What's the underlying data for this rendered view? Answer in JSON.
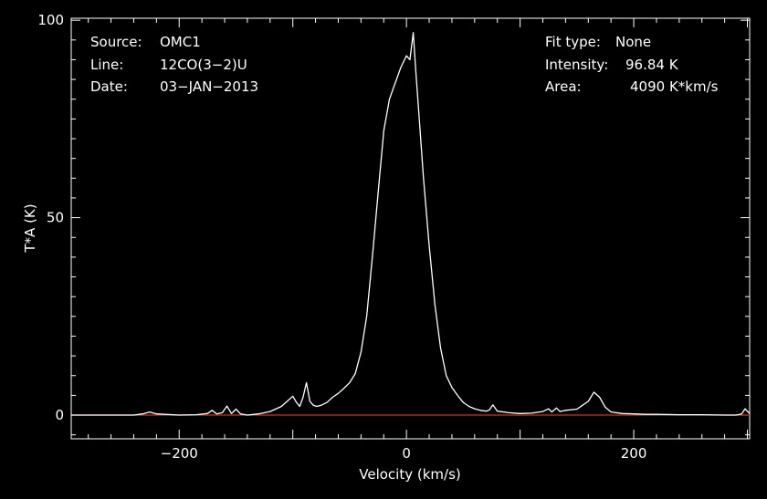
{
  "chart_data": {
    "type": "line",
    "xlabel": "Velocity (km/s)",
    "ylabel": "T*A (K)",
    "xlim": [
      -295,
      302
    ],
    "ylim": [
      -6,
      100.5
    ],
    "x_ticks": [
      -200,
      0,
      200
    ],
    "x_tick_labels": [
      "−200",
      "0",
      "200"
    ],
    "y_ticks": [
      0,
      50,
      100
    ],
    "y_tick_labels": [
      "0",
      "50",
      "100"
    ],
    "background_color": "#000000",
    "axis_color": "#ffffff",
    "grid": false,
    "annotations_left": [
      {
        "key": "Source:",
        "value": "OMC1"
      },
      {
        "key": "Line:",
        "value": "12CO(3−2)U"
      },
      {
        "key": "Date:",
        "value": "03−JAN−2013"
      }
    ],
    "annotations_right": [
      {
        "key": "Fit type:",
        "value": "None"
      },
      {
        "key": "Intensity:",
        "value": "96.84 K"
      },
      {
        "key": "Area:",
        "value": "4090 K*km/s"
      }
    ],
    "series": [
      {
        "color": "#ffffff",
        "x": [
          -295,
          -280,
          -260,
          -240,
          -232,
          -226,
          -220,
          -200,
          -185,
          -175,
          -171,
          -167,
          -162,
          -158,
          -154,
          -150,
          -146,
          -140,
          -130,
          -120,
          -110,
          -105,
          -100,
          -97,
          -94,
          -91,
          -88,
          -85,
          -82,
          -79,
          -75,
          -70,
          -65,
          -60,
          -55,
          -50,
          -45,
          -40,
          -35,
          -30,
          -25,
          -20,
          -15,
          -10,
          -5,
          0,
          3,
          6,
          8,
          10,
          12,
          15,
          20,
          25,
          30,
          35,
          40,
          45,
          50,
          55,
          60,
          65,
          70,
          73,
          76,
          80,
          90,
          100,
          110,
          120,
          125,
          128,
          132,
          135,
          140,
          150,
          160,
          165,
          170,
          175,
          180,
          190,
          200,
          210,
          220,
          240,
          260,
          280,
          290,
          295,
          298,
          302
        ],
        "y": [
          0,
          0,
          0,
          0,
          0.3,
          0.8,
          0.3,
          0,
          0.1,
          0.4,
          1.2,
          0.3,
          0.6,
          2.3,
          0.4,
          1.5,
          0.3,
          0,
          0.3,
          0.9,
          2.2,
          3.5,
          4.8,
          3.3,
          2.2,
          4.5,
          8.2,
          3.5,
          2.5,
          2.2,
          2.5,
          3.2,
          4.5,
          5.5,
          6.8,
          8.2,
          10.5,
          16,
          25,
          40,
          56,
          72,
          80,
          84,
          88,
          91,
          90,
          96.84,
          88,
          80,
          72,
          60,
          43,
          28,
          17,
          10,
          7,
          5,
          3.2,
          2.2,
          1.6,
          1.2,
          1,
          1.3,
          2.6,
          1,
          0.6,
          0.4,
          0.5,
          0.9,
          1.6,
          0.8,
          1.8,
          0.9,
          1.2,
          1.5,
          3.5,
          5.8,
          4.5,
          2,
          0.8,
          0.4,
          0.3,
          0.2,
          0.2,
          0.1,
          0.1,
          0,
          0,
          0.3,
          1.6,
          0.4
        ]
      },
      {
        "color": "#d03020",
        "x": [
          -295,
          302
        ],
        "y": [
          0,
          0
        ]
      }
    ]
  }
}
